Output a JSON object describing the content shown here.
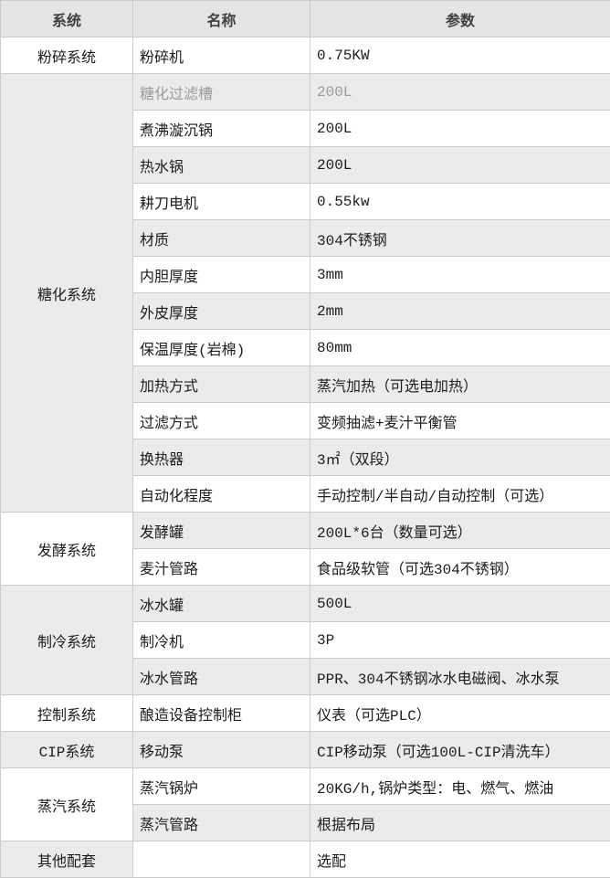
{
  "colors": {
    "header_bg": "#e4e4e4",
    "stripe_bg": "#ebebeb",
    "white_bg": "#ffffff",
    "border": "#cbcbcb",
    "header_text": "#404040",
    "body_text": "#1c1c1c",
    "muted_text": "#9b9b9b"
  },
  "table": {
    "columns": [
      "系统",
      "名称",
      "参数"
    ],
    "groups": [
      {
        "system": "粉碎系统",
        "rows": [
          {
            "name": "粉碎机",
            "param": "0.75KW"
          }
        ]
      },
      {
        "system": "糖化系统",
        "rows": [
          {
            "name": "糖化过滤槽",
            "param": "200L",
            "muted": true
          },
          {
            "name": "煮沸漩沉锅",
            "param": "200L"
          },
          {
            "name": "热水锅",
            "param": "200L"
          },
          {
            "name": "耕刀电机",
            "param": "0.55kw"
          },
          {
            "name": "材质",
            "param": "304不锈钢"
          },
          {
            "name": "内胆厚度",
            "param": "3mm"
          },
          {
            "name": "外皮厚度",
            "param": "2mm"
          },
          {
            "name": "保温厚度(岩棉)",
            "param": "80mm"
          },
          {
            "name": "加热方式",
            "param": "蒸汽加热（可选电加热）"
          },
          {
            "name": "过滤方式",
            "param": "变频抽滤+麦汁平衡管"
          },
          {
            "name": "换热器",
            "param": "3㎡（双段）"
          },
          {
            "name": "自动化程度",
            "param": "手动控制/半自动/自动控制（可选）"
          }
        ]
      },
      {
        "system": "发酵系统",
        "rows": [
          {
            "name": "发酵罐",
            "param": "200L*6台（数量可选）"
          },
          {
            "name": "麦汁管路",
            "param": "食品级软管（可选304不锈钢）"
          }
        ]
      },
      {
        "system": "制冷系统",
        "rows": [
          {
            "name": "冰水罐",
            "param": "500L"
          },
          {
            "name": "制冷机",
            "param": "3P"
          },
          {
            "name": "冰水管路",
            "param": "PPR、304不锈钢冰水电磁阀、冰水泵"
          }
        ]
      },
      {
        "system": "控制系统",
        "rows": [
          {
            "name": "酿造设备控制柜",
            "param": "仪表（可选PLC）"
          }
        ]
      },
      {
        "system": "CIP系统",
        "rows": [
          {
            "name": "移动泵",
            "param": "CIP移动泵（可选100L-CIP清洗车）"
          }
        ]
      },
      {
        "system": "蒸汽系统",
        "rows": [
          {
            "name": "蒸汽锅炉",
            "param": "20KG/h,锅炉类型：电、燃气、燃油"
          },
          {
            "name": "蒸汽管路",
            "param": "根据布局"
          }
        ]
      },
      {
        "system": "其他配套",
        "rows": [
          {
            "name": "",
            "param": "选配"
          }
        ]
      }
    ]
  }
}
